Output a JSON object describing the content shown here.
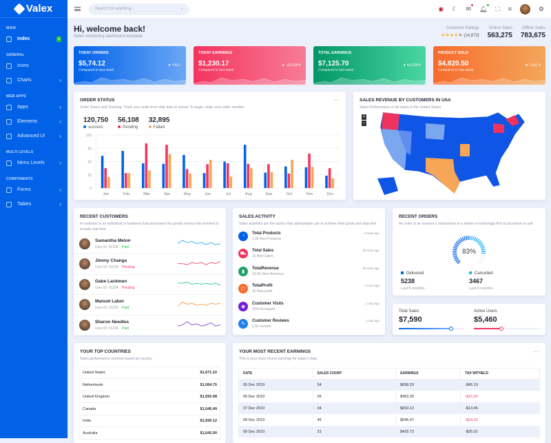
{
  "brand": "Valex",
  "sidebar": {
    "sections": [
      {
        "title": "MAIN",
        "items": [
          {
            "label": "Index",
            "badge": "1"
          }
        ]
      },
      {
        "title": "GENERAL",
        "items": [
          {
            "label": "Icons"
          },
          {
            "label": "Charts"
          }
        ]
      },
      {
        "title": "WEB APPS",
        "items": [
          {
            "label": "Apps"
          },
          {
            "label": "Elements"
          },
          {
            "label": "Advanced UI"
          }
        ]
      },
      {
        "title": "MULTI LEVELS",
        "items": [
          {
            "label": "Menu Levels"
          }
        ]
      },
      {
        "title": "COMPONENTS",
        "items": [
          {
            "label": "Forms"
          },
          {
            "label": "Tables"
          }
        ]
      }
    ]
  },
  "header": {
    "search_placeholder": "Search for anything..."
  },
  "welcome": {
    "title": "Hi, welcome back!",
    "subtitle": "Sales monitoring dashboard template."
  },
  "stats": {
    "ratings_label": "Customer Ratings",
    "ratings_count": "(14,873)",
    "rating": 4,
    "online_label": "Online Sales",
    "online": "563,275",
    "offline_label": "Offline Sales",
    "offline": "783,675"
  },
  "kpis": [
    {
      "title": "TODAY ORDERS",
      "value": "$5,74.12",
      "sub": "Compared to last week",
      "change": "+427",
      "color": "#0162e8",
      "color2": "#6aa6f5"
    },
    {
      "title": "TODAY EARNINGS",
      "value": "$1,230.17",
      "sub": "Compared to last week",
      "change": "-23.09%",
      "color": "#f4345f",
      "color2": "#f77c96"
    },
    {
      "title": "TOTAL EARNINGS",
      "value": "$7,125.70",
      "sub": "Compared to last week",
      "change": "52.09%",
      "color": "#029666",
      "color2": "#48d6a4"
    },
    {
      "title": "PRODUCT SOLD",
      "value": "$4,820.50",
      "sub": "Compared to last week",
      "change": "-152.3",
      "color": "#f76a2d",
      "color2": "#f3a75a"
    }
  ],
  "order_status": {
    "title": "ORDER STATUS",
    "subtitle": "Order Status and Tracking. Track your order from ship date to arrival. To begin, enter your order number.",
    "totals": [
      {
        "value": "120,750",
        "label": "success"
      },
      {
        "value": "56,108",
        "label": "Pending"
      },
      {
        "value": "32,895",
        "label": "Failed"
      }
    ]
  },
  "chart_data": {
    "type": "bar",
    "categories": [
      "Jan",
      "Feb",
      "Mar",
      "Apr",
      "May",
      "Jun",
      "Jul",
      "Aug",
      "Sep",
      "Oct",
      "Nov",
      "Dec"
    ],
    "ylim": [
      0,
      120
    ],
    "yticks": [
      "0",
      "30",
      "60",
      "90",
      "120"
    ],
    "series": [
      {
        "name": "success",
        "color": "#0162e8",
        "values": [
          73,
          84,
          56,
          55,
          75,
          34,
          60,
          98,
          35,
          49,
          47,
          28
        ]
      },
      {
        "name": "Pending",
        "color": "#f4345f",
        "values": [
          45,
          34,
          101,
          98,
          43,
          54,
          56,
          55,
          54,
          33,
          78,
          45
        ]
      },
      {
        "name": "Failed",
        "color": "#f7a556",
        "values": [
          25,
          34,
          40,
          77,
          33,
          64,
          26,
          45,
          36,
          64,
          48,
          22
        ]
      }
    ]
  },
  "map": {
    "title": "SALES REVENUE BY CUSTOMERS IN USA",
    "subtitle": "Sales Performance of all states in the United States",
    "zoom_in": "+",
    "zoom_out": "−"
  },
  "customers": {
    "title": "RECENT CUSTOMERS",
    "subtitle": "A customer is an individual or business that purchases the goods service has evolved to include real-time",
    "items": [
      {
        "name": "Samantha Melon",
        "id": "User ID: #1234",
        "status": "Paid",
        "color": "#3bb1f0",
        "spark": [
          4,
          7,
          5,
          6,
          4,
          5,
          3,
          5,
          3,
          4
        ]
      },
      {
        "name": "Jimmy Changa",
        "id": "User ID: #1234",
        "status": "Pending",
        "color": "#f4597a",
        "spark": [
          4,
          4,
          3,
          5,
          4,
          5,
          3,
          5,
          4,
          6
        ]
      },
      {
        "name": "Gabe Lackmen",
        "id": "User ID: #1234",
        "status": "Pending",
        "color": "#3ecf8e",
        "spark": [
          5,
          5,
          6,
          4,
          5,
          4,
          5,
          4,
          5,
          3
        ]
      },
      {
        "name": "Manuel Labor",
        "id": "User ID: #1234",
        "status": "Paid",
        "color": "#f7a556",
        "spark": [
          2,
          6,
          4,
          5,
          3,
          4,
          3,
          5,
          4,
          5
        ]
      },
      {
        "name": "Sharon Needles",
        "id": "User ID: #1234",
        "status": "Paid",
        "color": "#8b59d6",
        "spark": [
          3,
          4,
          7,
          4,
          5,
          3,
          4,
          6,
          3,
          4
        ]
      }
    ]
  },
  "activity": {
    "title": "SALES ACTIVITY",
    "subtitle": "Sales activities are the tactics that salespeople use to achieve their goals and objective",
    "items": [
      {
        "title": "Total Products",
        "sub": "1.3k New Products",
        "time": "3 days ago",
        "color": "#0162e8",
        "glyph": "◔",
        "icon": "pie-icon"
      },
      {
        "title": "Total Sales",
        "sub": "1k New Sales",
        "time": "35 mins ago",
        "color": "#f4345f",
        "glyph": "⛟",
        "icon": "cart-icon"
      },
      {
        "title": "TotalRevenue",
        "sub": "23.5K New Revenue",
        "time": "50 mins ago",
        "color": "#22a06b",
        "glyph": "▮",
        "icon": "bar-chart-icon"
      },
      {
        "title": "TotalProfit",
        "sub": "3k New profit",
        "time": "1 hour ago",
        "color": "#f76a2d",
        "glyph": "⬡",
        "icon": "box-icon"
      },
      {
        "title": "Customer Visits",
        "sub": "15% increased",
        "time": "1 day ago",
        "color": "#6f1bd6",
        "glyph": "◉",
        "icon": "eye-icon"
      },
      {
        "title": "Customer Reviews",
        "sub": "1.5k reviews",
        "time": "1 day ago",
        "color": "#1f7df0",
        "glyph": "✎",
        "icon": "edit-icon"
      }
    ]
  },
  "recent_orders": {
    "title": "RECENT ORDERS",
    "subtitle": "An order is an investor's instructions to a broker or brokerage firm to purchase or sell",
    "percent": 83,
    "percent_label": "83%",
    "delivered_label": "Delivered",
    "delivered": "5238",
    "cancelled_label": "Cancelled",
    "cancelled": "3467",
    "period": "Last 6 months"
  },
  "sales_users": {
    "sales_label": "Total Sales",
    "sales": "$7,590",
    "sales_progress": 80,
    "users_label": "Active Users",
    "users": "$5,460",
    "users_progress": 42
  },
  "countries": {
    "title": "YOUR TOP COUNTRIES",
    "subtitle": "Sales performance revenue based by country",
    "rows": [
      [
        "United States",
        "$1,671.10"
      ],
      [
        "Netherlands",
        "$1,064.75"
      ],
      [
        "United Kingdom",
        "$1,055.98"
      ],
      [
        "Canada",
        "$1,045.49"
      ],
      [
        "India",
        "$1,930.12"
      ],
      [
        "Australia",
        "$1,042.00"
      ]
    ]
  },
  "earnings": {
    "title": "YOUR MOST RECENT EARNINGS",
    "subtitle": "This is your most recent earnings for today's date.",
    "columns": [
      "DATE",
      "SALES COUNT",
      "EARNINGS",
      "TAX WITHELD"
    ],
    "rows": [
      [
        "05 Dec 2019",
        "34",
        "$658.20",
        "-$45.10"
      ],
      [
        "06 Dec 2019",
        "26",
        "$453.25",
        "-$15.02"
      ],
      [
        "07 Dec 2019",
        "34",
        "$653.12",
        "-$13.45"
      ],
      [
        "08 Dec 2019",
        "45",
        "$546.47",
        "-$24.22"
      ],
      [
        "09 Dec 2019",
        "31",
        "$425.72",
        "-$25.01"
      ]
    ],
    "negative_rows": [
      1,
      3
    ]
  }
}
